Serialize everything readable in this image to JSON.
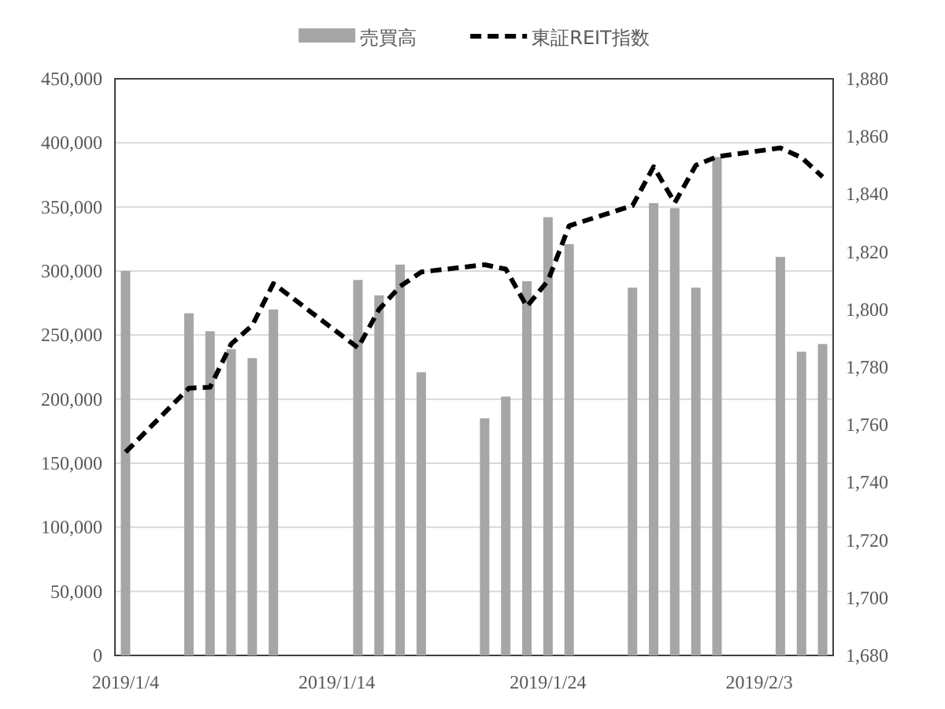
{
  "chart_data": {
    "type": "bar",
    "x": [
      "2019-01-04",
      "2019-01-07",
      "2019-01-08",
      "2019-01-09",
      "2019-01-10",
      "2019-01-11",
      "2019-01-15",
      "2019-01-16",
      "2019-01-17",
      "2019-01-18",
      "2019-01-21",
      "2019-01-22",
      "2019-01-23",
      "2019-01-24",
      "2019-01-25",
      "2019-01-28",
      "2019-01-29",
      "2019-01-30",
      "2019-01-31",
      "2019-02-01",
      "2019-02-04",
      "2019-02-05",
      "2019-02-06"
    ],
    "series": [
      {
        "name": "売買高",
        "color": "#a6a6a6",
        "values": [
          300000,
          267000,
          253000,
          239000,
          232000,
          270000,
          293000,
          281000,
          305000,
          221000,
          185000,
          202000,
          292000,
          342000,
          321000,
          287000,
          353000,
          349000,
          287000,
          389000,
          311000,
          237000,
          243000
        ]
      },
      {
        "name": "東証REIT指数",
        "type": "line",
        "axis": "y2",
        "color": "#000000",
        "line_style": "dashed",
        "values": [
          1750.5,
          1772.7,
          1773,
          1788,
          1794.5,
          1809,
          1786.7,
          1800,
          1808,
          1813,
          1815.5,
          1814,
          1801,
          1810,
          1829,
          1836,
          1849.5,
          1837,
          1850,
          1853,
          1856,
          1852.7,
          1846
        ]
      }
    ],
    "xlim": [
      "2019-01-03T12:00",
      "2019-02-06T12:00"
    ],
    "xticks": [
      {
        "value": "2019-01-04",
        "label": "2019/1/4"
      },
      {
        "value": "2019-01-14",
        "label": "2019/1/14"
      },
      {
        "value": "2019-01-24",
        "label": "2019/1/24"
      },
      {
        "value": "2019-02-03",
        "label": "2019/2/3"
      }
    ],
    "ylim": [
      0,
      450000
    ],
    "yticks": [
      0,
      {
        "value": 50000,
        "label": "50,000"
      },
      {
        "value": 100000,
        "label": "100,000"
      },
      {
        "value": 150000,
        "label": "150,000"
      },
      {
        "value": 200000,
        "label": "200,000"
      },
      {
        "value": 250000,
        "label": "250,000"
      },
      {
        "value": 300000,
        "label": "300,000"
      },
      {
        "value": 350000,
        "label": "350,000"
      },
      {
        "value": 400000,
        "label": "400,000"
      },
      {
        "value": 450000,
        "label": "450,000"
      }
    ],
    "y2lim": [
      1680,
      1880
    ],
    "y2ticks": [
      {
        "value": 1680,
        "label": "1,680"
      },
      {
        "value": 1700,
        "label": "1,700"
      },
      {
        "value": 1720,
        "label": "1,720"
      },
      {
        "value": 1740,
        "label": "1,740"
      },
      {
        "value": 1760,
        "label": "1,760"
      },
      {
        "value": 1780,
        "label": "1,780"
      },
      {
        "value": 1800,
        "label": "1,800"
      },
      {
        "value": 1820,
        "label": "1,820"
      },
      {
        "value": 1840,
        "label": "1,840"
      },
      {
        "value": 1860,
        "label": "1,860"
      },
      {
        "value": 1880,
        "label": "1,880"
      }
    ],
    "grid": "y",
    "legend": "top",
    "marker": "none"
  }
}
